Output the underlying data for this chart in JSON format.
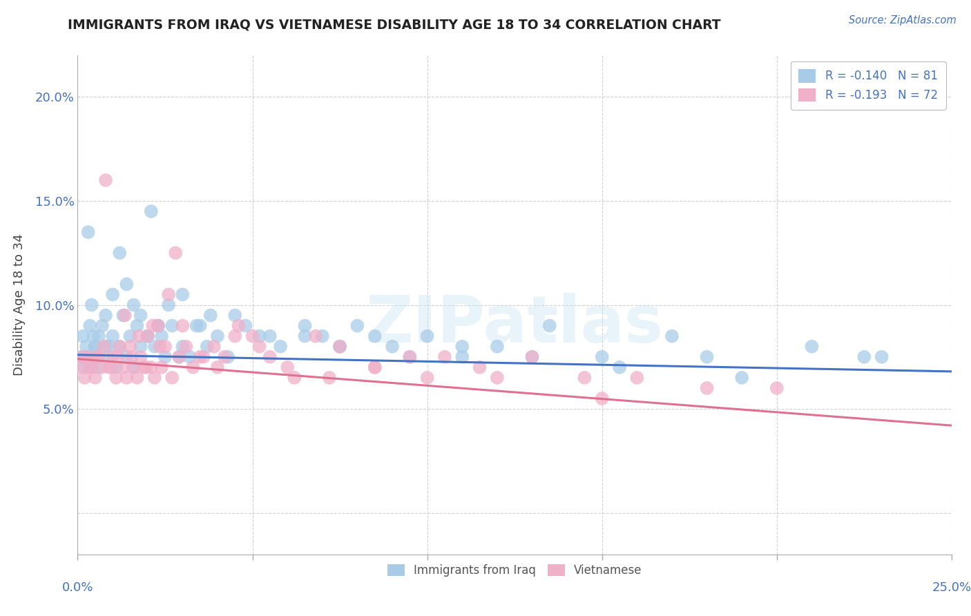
{
  "title": "IMMIGRANTS FROM IRAQ VS VIETNAMESE DISABILITY AGE 18 TO 34 CORRELATION CHART",
  "source_text": "Source: ZipAtlas.com",
  "ylabel": "Disability Age 18 to 34",
  "xlim": [
    0.0,
    25.0
  ],
  "ylim": [
    -2.0,
    22.0
  ],
  "watermark": "ZIPatlas",
  "blue_color": "#a8cce8",
  "pink_color": "#f0b0c8",
  "blue_line_color": "#4472c4",
  "pink_line_color": "#e07090",
  "iraq_x": [
    0.1,
    0.15,
    0.2,
    0.25,
    0.3,
    0.35,
    0.4,
    0.45,
    0.5,
    0.55,
    0.6,
    0.7,
    0.8,
    0.9,
    1.0,
    1.1,
    1.2,
    1.3,
    1.4,
    1.5,
    1.6,
    1.7,
    1.8,
    2.0,
    2.1,
    2.2,
    2.3,
    2.5,
    2.7,
    2.9,
    3.0,
    3.2,
    3.5,
    3.7,
    4.0,
    4.3,
    4.8,
    5.2,
    5.8,
    6.5,
    7.0,
    7.5,
    8.0,
    9.0,
    10.0,
    11.0,
    12.0,
    13.5,
    15.5,
    17.0,
    19.0,
    22.5,
    0.2,
    0.3,
    0.5,
    0.6,
    0.8,
    1.0,
    1.2,
    1.4,
    1.6,
    1.8,
    2.0,
    2.3,
    2.6,
    3.0,
    3.4,
    3.8,
    4.5,
    5.5,
    6.5,
    7.5,
    8.5,
    9.5,
    11.0,
    13.0,
    15.0,
    18.0,
    21.0,
    23.0,
    0.4,
    0.9,
    2.4
  ],
  "iraq_y": [
    7.5,
    8.5,
    7.0,
    8.0,
    7.5,
    9.0,
    7.0,
    8.5,
    8.0,
    7.5,
    7.0,
    9.0,
    8.0,
    7.5,
    8.5,
    7.0,
    8.0,
    9.5,
    7.5,
    8.5,
    7.0,
    9.0,
    8.0,
    8.5,
    14.5,
    8.0,
    9.0,
    7.5,
    9.0,
    7.5,
    8.0,
    7.5,
    9.0,
    8.0,
    8.5,
    7.5,
    9.0,
    8.5,
    8.0,
    9.0,
    8.5,
    8.0,
    9.0,
    8.0,
    8.5,
    7.5,
    8.0,
    9.0,
    7.0,
    8.5,
    6.5,
    7.5,
    7.5,
    13.5,
    8.0,
    8.5,
    9.5,
    10.5,
    12.5,
    11.0,
    10.0,
    9.5,
    8.5,
    9.0,
    10.0,
    10.5,
    9.0,
    9.5,
    9.5,
    8.5,
    8.5,
    8.0,
    8.5,
    7.5,
    8.0,
    7.5,
    7.5,
    7.5,
    8.0,
    7.5,
    10.0,
    8.0,
    8.5
  ],
  "viet_x": [
    0.1,
    0.2,
    0.3,
    0.4,
    0.5,
    0.6,
    0.7,
    0.8,
    0.9,
    1.0,
    1.1,
    1.2,
    1.3,
    1.4,
    1.5,
    1.6,
    1.7,
    1.8,
    1.9,
    2.0,
    2.1,
    2.2,
    2.3,
    2.4,
    2.5,
    2.7,
    2.9,
    3.1,
    3.3,
    3.6,
    3.9,
    4.2,
    4.6,
    5.0,
    5.5,
    6.0,
    6.8,
    7.5,
    8.5,
    9.5,
    10.5,
    11.5,
    13.0,
    14.5,
    16.0,
    18.0,
    20.0,
    0.15,
    0.35,
    0.55,
    0.75,
    0.95,
    1.15,
    1.35,
    1.55,
    1.75,
    1.95,
    2.15,
    2.35,
    2.6,
    2.8,
    3.0,
    3.5,
    4.0,
    4.5,
    5.2,
    6.2,
    7.2,
    8.5,
    10.0,
    12.0,
    15.0
  ],
  "viet_y": [
    7.0,
    6.5,
    7.5,
    7.0,
    6.5,
    7.5,
    7.0,
    16.0,
    7.0,
    7.5,
    6.5,
    8.0,
    7.0,
    6.5,
    8.0,
    7.0,
    6.5,
    7.5,
    7.0,
    8.5,
    7.0,
    6.5,
    9.0,
    7.0,
    8.0,
    6.5,
    7.5,
    8.0,
    7.0,
    7.5,
    8.0,
    7.5,
    9.0,
    8.5,
    7.5,
    7.0,
    8.5,
    8.0,
    7.0,
    7.5,
    7.5,
    7.0,
    7.5,
    6.5,
    6.5,
    6.0,
    6.0,
    7.5,
    7.0,
    7.5,
    8.0,
    7.0,
    7.5,
    9.5,
    7.5,
    8.5,
    7.0,
    9.0,
    8.0,
    10.5,
    12.5,
    9.0,
    7.5,
    7.0,
    8.5,
    8.0,
    6.5,
    6.5,
    7.0,
    6.5,
    6.5,
    5.5
  ],
  "iraq_trend_start": 7.6,
  "iraq_trend_end": 6.8,
  "viet_trend_start": 7.4,
  "viet_trend_end": 4.2
}
